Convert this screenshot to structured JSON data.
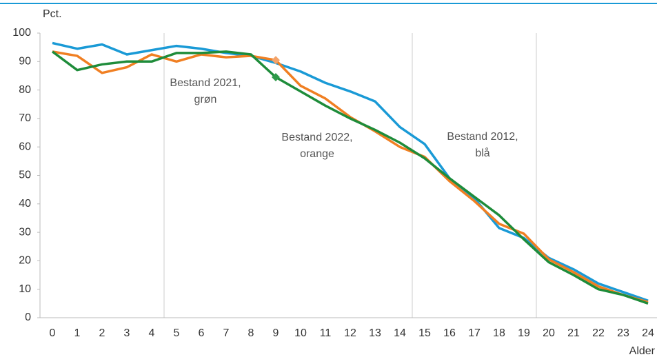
{
  "chart_data": {
    "type": "line",
    "y_label": "Pct.",
    "x_label": "Alder",
    "categories": [
      "0",
      "1",
      "2",
      "3",
      "4",
      "5",
      "6",
      "7",
      "8",
      "9",
      "10",
      "11",
      "12",
      "13",
      "14",
      "15",
      "16",
      "17",
      "18",
      "19",
      "20",
      "21",
      "22",
      "23",
      "24"
    ],
    "series": [
      {
        "name": "Bestand 2012",
        "color": "#1a9ad6",
        "values": [
          96.5,
          94.5,
          96,
          92.5,
          94,
          95.5,
          94.5,
          93,
          92,
          89.5,
          86.5,
          82.5,
          79.5,
          76,
          67,
          61,
          49,
          42,
          31.5,
          28,
          21,
          17,
          12,
          9,
          6
        ]
      },
      {
        "name": "Bestand 2022",
        "color": "#f07f22",
        "marker_color": "#f4a36a",
        "markers": [
          9
        ],
        "values": [
          93.5,
          92,
          86,
          88,
          92.5,
          90,
          92.5,
          91.5,
          92,
          90.5,
          81.5,
          77,
          70.5,
          65.5,
          60,
          56.5,
          48,
          41,
          33,
          29.5,
          20.5,
          16,
          11,
          8,
          5.5
        ]
      },
      {
        "name": "Bestand 2021",
        "color": "#1e8c3a",
        "marker_color": "#2e9a4a",
        "markers": [
          9
        ],
        "values": [
          93.5,
          87,
          89,
          90,
          90,
          93,
          93,
          93.5,
          92.5,
          84.5,
          79.5,
          74.5,
          70,
          66,
          61.5,
          56,
          49,
          42.5,
          36,
          27.5,
          19.5,
          15,
          10,
          8,
          5
        ]
      }
    ],
    "annotations": [
      [
        "Bestand 2021,",
        "grøn"
      ],
      [
        "Bestand 2022,",
        "orange"
      ],
      [
        "Bestand 2012,",
        "blå"
      ]
    ],
    "ylim": [
      0,
      100
    ],
    "yticks": [
      0,
      10,
      20,
      30,
      40,
      50,
      60,
      70,
      80,
      90,
      100
    ]
  }
}
